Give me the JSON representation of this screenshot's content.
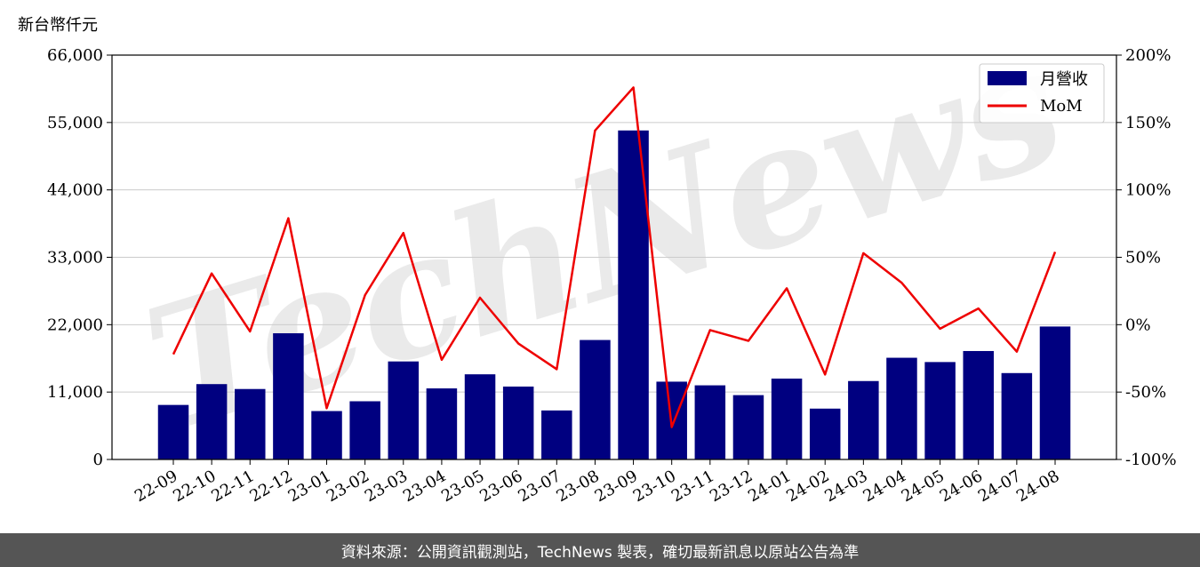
{
  "unit_label": "新台幣仟元",
  "watermark": "TechNews",
  "footer": "資料來源：公開資訊觀測站，TechNews 製表，確切最新訊息以原站公告為準",
  "colors": {
    "bar": "#000080",
    "line": "#ee0000",
    "footer_bg": "#555555",
    "watermark": "#e6e6e6"
  },
  "chart_data": {
    "type": "bar",
    "categories": [
      "22-09",
      "22-10",
      "22-11",
      "22-12",
      "23-01",
      "23-02",
      "23-03",
      "23-04",
      "23-05",
      "23-06",
      "23-07",
      "23-08",
      "23-09",
      "23-10",
      "23-11",
      "23-12",
      "24-01",
      "24-02",
      "24-03",
      "24-04",
      "24-05",
      "24-06",
      "24-07",
      "24-08"
    ],
    "series": [
      {
        "name": "月營收",
        "kind": "bar",
        "axis": "left",
        "values": [
          8900,
          12300,
          11500,
          20600,
          7900,
          9500,
          16000,
          11600,
          13900,
          11900,
          8000,
          19500,
          53700,
          12700,
          12100,
          10500,
          13200,
          8300,
          12800,
          16600,
          15900,
          17700,
          14100,
          21700
        ]
      },
      {
        "name": "MoM",
        "kind": "line",
        "axis": "right",
        "values": [
          -22,
          38,
          -5,
          79,
          -62,
          22,
          68,
          -26,
          20,
          -14,
          -33,
          144,
          176,
          -76,
          -4,
          -12,
          27,
          -37,
          53,
          31,
          -3,
          12,
          -20,
          54
        ]
      }
    ],
    "y_left": {
      "min": 0,
      "max": 66000,
      "ticks": [
        0,
        11000,
        22000,
        33000,
        44000,
        55000,
        66000
      ],
      "tick_labels": [
        "0",
        "11,000",
        "22,000",
        "33,000",
        "44,000",
        "55,000",
        "66,000"
      ]
    },
    "y_right": {
      "min": -100,
      "max": 200,
      "ticks": [
        -100,
        -50,
        0,
        50,
        100,
        150,
        200
      ],
      "tick_labels": [
        "-100%",
        "-50%",
        "0%",
        "50%",
        "100%",
        "150%",
        "200%"
      ]
    },
    "grid": "horizontal",
    "legend": "top-right"
  }
}
